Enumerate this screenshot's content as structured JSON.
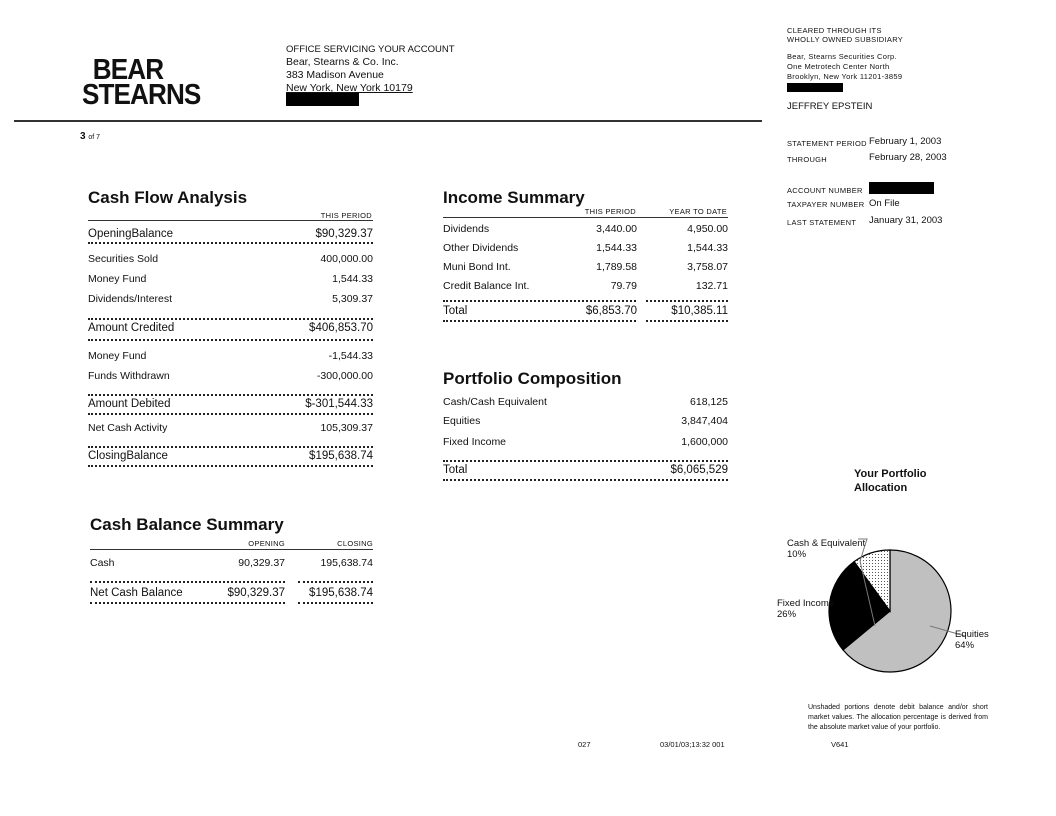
{
  "logo": {
    "line1": "BEAR",
    "line2": "STEARNS"
  },
  "office": {
    "heading": "OFFICE SERVICING YOUR ACCOUNT",
    "line1": "Bear, Stearns & Co. Inc.",
    "line2": "383 Madison Avenue",
    "line3": "New York, New York  10179"
  },
  "clearing": {
    "line1": "CLEARED THROUGH ITS",
    "line2": "WHOLLY OWNED SUBSIDIARY",
    "addr1": "Bear, Stearns Securities Corp.",
    "addr2": "One Metrotech Center North",
    "addr3": "Brooklyn, New York 11201-3859",
    "client": "JEFFREY EPSTEIN"
  },
  "page": {
    "number": "3",
    "of": "of 7"
  },
  "statement": {
    "period_label": "STATEMENT PERIOD",
    "period": "February 1, 2003",
    "through_label": "THROUGH",
    "through": "February 28, 2003",
    "account_label": "ACCOUNT NUMBER",
    "taxpayer_label": "TAXPAYER NUMBER",
    "taxpayer": "On File",
    "last_label": "LAST STATEMENT",
    "last": "January 31, 2003"
  },
  "cash_flow": {
    "title": "Cash Flow Analysis",
    "col": "THIS PERIOD",
    "rows": [
      {
        "label": "OpeningBalance",
        "value": "$90,329.37"
      },
      {
        "label": "Securities Sold",
        "value": "400,000.00"
      },
      {
        "label": "Money Fund",
        "value": "1,544.33"
      },
      {
        "label": "Dividends/Interest",
        "value": "5,309.37"
      },
      {
        "label": "Amount Credited",
        "value": "$406,853.70"
      },
      {
        "label": "Money Fund",
        "value": "-1,544.33"
      },
      {
        "label": "Funds Withdrawn",
        "value": "-300,000.00"
      },
      {
        "label": "Amount Debited",
        "value": "$-301,544.33"
      },
      {
        "label": "Net Cash Activity",
        "value": "105,309.37"
      },
      {
        "label": "ClosingBalance",
        "value": "$195,638.74"
      }
    ]
  },
  "income": {
    "title": "Income Summary",
    "col1": "THIS PERIOD",
    "col2": "YEAR TO DATE",
    "rows": [
      {
        "label": "Dividends",
        "period": "3,440.00",
        "ytd": "4,950.00"
      },
      {
        "label": "Other Dividends",
        "period": "1,544.33",
        "ytd": "1,544.33"
      },
      {
        "label": "Muni Bond Int.",
        "period": "1,789.58",
        "ytd": "3,758.07"
      },
      {
        "label": "Credit Balance Int.",
        "period": "79.79",
        "ytd": "132.71"
      },
      {
        "label": "Total",
        "period": "$6,853.70",
        "ytd": "$10,385.11"
      }
    ]
  },
  "portfolio": {
    "title": "Portfolio Composition",
    "rows": [
      {
        "label": "Cash/Cash Equivalent",
        "value": "618,125"
      },
      {
        "label": "Equities",
        "value": "3,847,404"
      },
      {
        "label": "Fixed Income",
        "value": "1,600,000"
      },
      {
        "label": "Total",
        "value": "$6,065,529"
      }
    ]
  },
  "cash_balance": {
    "title": "Cash Balance Summary",
    "col1": "OPENING",
    "col2": "CLOSING",
    "rows": [
      {
        "label": "Cash",
        "opening": "90,329.37",
        "closing": "195,638.74"
      },
      {
        "label": "Net Cash Balance",
        "opening": "$90,329.37",
        "closing": "$195,638.74"
      }
    ]
  },
  "chart_data": {
    "type": "pie",
    "title": "Your Portfolio Allocation",
    "slices": [
      {
        "label": "Equities",
        "value": 64,
        "display": "64%",
        "color": "#c0c0c0"
      },
      {
        "label": "Fixed Income",
        "value": 26,
        "display": "26%",
        "color": "#000000"
      },
      {
        "label": "Cash & Equivalent",
        "value": 10,
        "display": "10%",
        "color": "dotted"
      }
    ]
  },
  "note": "Unshaded portions denote debit balance and/or short market values. The allocation percentage is derived from the absolute market value of your portfolio.",
  "footer": {
    "code1": "027",
    "datetime": "03/01/03;13:32 001",
    "code2": "V641"
  }
}
